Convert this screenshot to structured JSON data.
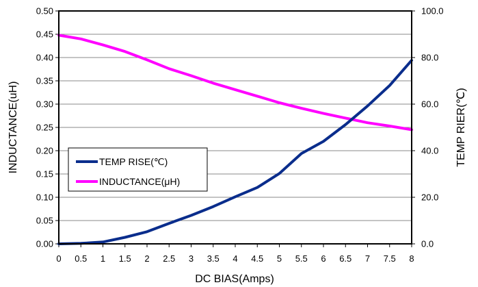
{
  "chart_data": {
    "type": "line",
    "title": "",
    "xlabel": "DC  BIAS(Amps)",
    "ylabel_left": "INDUCTANCE(uH)",
    "ylabel_right": "TEMP RIER(℃)",
    "xlim": [
      0,
      8
    ],
    "ylim_left": [
      0,
      0.5
    ],
    "ylim_right": [
      0,
      100
    ],
    "grid": "horizontal",
    "legend_position": "lower-left",
    "x_ticks": [
      "0",
      "0.5",
      "1",
      "1.5",
      "2",
      "2.5",
      "3",
      "3.5",
      "4",
      "4.5",
      "5",
      "5.5",
      "6",
      "6.5",
      "7",
      "7.5",
      "8"
    ],
    "y_left_ticks": [
      "0.00",
      "0.05",
      "0.10",
      "0.15",
      "0.20",
      "0.25",
      "0.30",
      "0.35",
      "0.40",
      "0.45",
      "0.50"
    ],
    "y_right_ticks": [
      "0.0",
      "20.0",
      "40.0",
      "60.0",
      "80.0",
      "100.0"
    ],
    "x": [
      0,
      0.5,
      1,
      1.5,
      2,
      2.5,
      3,
      3.5,
      4,
      4.5,
      5,
      5.5,
      6,
      6.5,
      7,
      7.5,
      8
    ],
    "series": [
      {
        "name": "TEMP RISE(℃)",
        "axis": "right",
        "color": "#0a2d8c",
        "values": [
          0,
          0.2,
          0.8,
          2.8,
          5.2,
          8.8,
          12.2,
          16.0,
          20.2,
          24.2,
          30.2,
          38.8,
          44.0,
          51.2,
          59.2,
          68.0,
          78.8
        ]
      },
      {
        "name": "INDUCTANCE(μH)",
        "axis": "left",
        "color": "#ff00ff",
        "values": [
          0.448,
          0.44,
          0.427,
          0.413,
          0.395,
          0.376,
          0.361,
          0.345,
          0.331,
          0.317,
          0.303,
          0.291,
          0.28,
          0.27,
          0.26,
          0.253,
          0.245
        ]
      }
    ]
  }
}
